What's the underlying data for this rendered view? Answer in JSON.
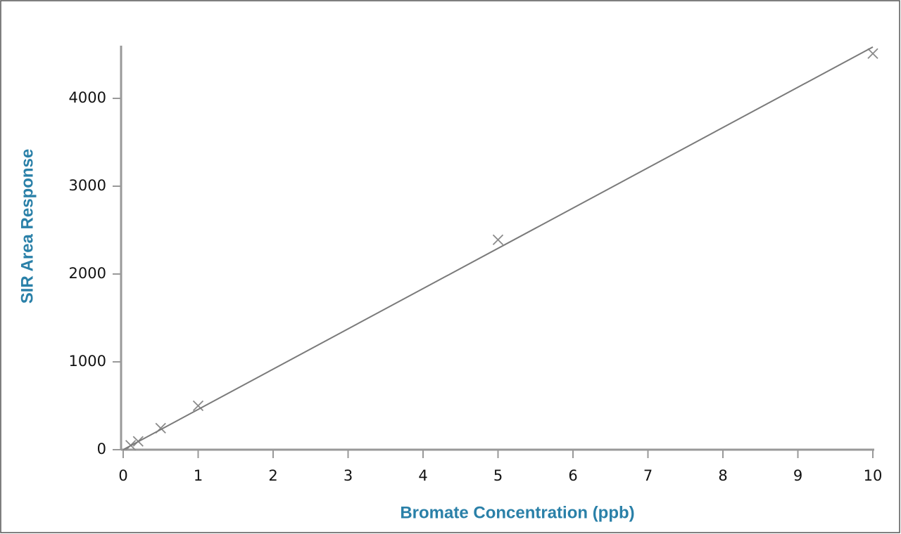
{
  "chart_data": {
    "type": "scatter",
    "xlabel": "Bromate Concentration (ppb)",
    "ylabel": "SIR Area Response",
    "series": [
      {
        "mode": "markers",
        "color": "#8a8a8a",
        "x": [
          0.1,
          0.2,
          0.5,
          1,
          5,
          10
        ],
        "values": [
          50,
          95,
          245,
          500,
          2390,
          4510
        ]
      },
      {
        "mode": "line",
        "color": "#7a7a7a",
        "x": [
          0,
          10
        ],
        "values": [
          0,
          4585
        ]
      }
    ],
    "xlim": [
      0,
      10
    ],
    "xticks": [
      0,
      1,
      2,
      3,
      4,
      5,
      6,
      7,
      8,
      9,
      10
    ],
    "ylim": [
      0,
      4600
    ],
    "yticks": [
      0,
      1000,
      2000,
      3000,
      4000
    ]
  }
}
